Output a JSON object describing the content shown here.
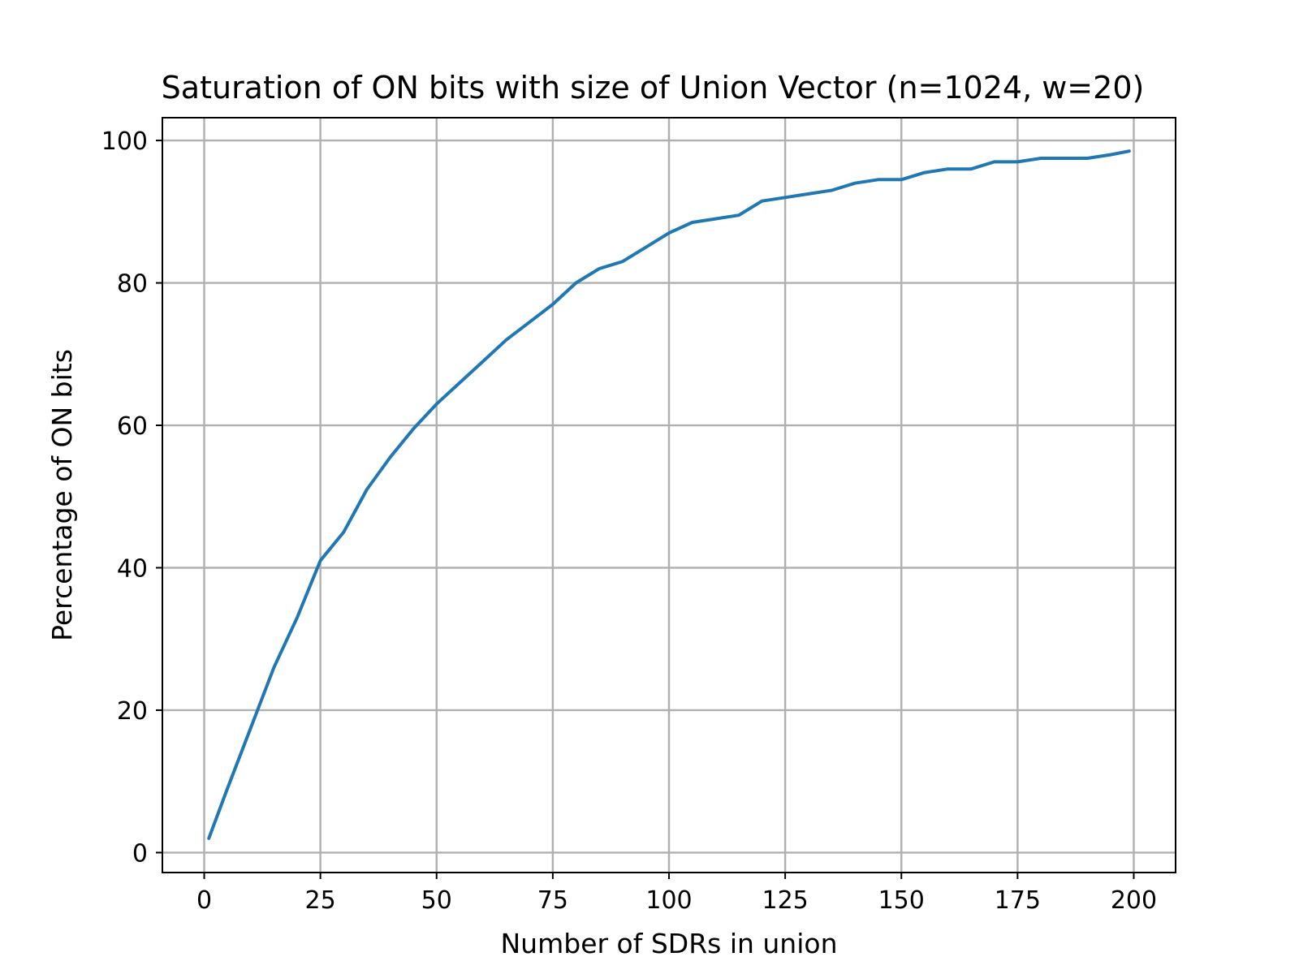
{
  "chart_data": {
    "type": "line",
    "title": "Saturation of ON bits with size of Union Vector (n=1024, w=20)",
    "xlabel": "Number of SDRs in union",
    "ylabel": "Percentage of ON bits",
    "xlim": [
      -9,
      209
    ],
    "ylim": [
      -2.8,
      103.2
    ],
    "xticks": [
      0,
      25,
      50,
      75,
      100,
      125,
      150,
      175,
      200
    ],
    "yticks": [
      0,
      20,
      40,
      60,
      80,
      100
    ],
    "xtick_labels": [
      "0",
      "25",
      "50",
      "75",
      "100",
      "125",
      "150",
      "175",
      "200"
    ],
    "ytick_labels": [
      "0",
      "20",
      "40",
      "60",
      "80",
      "100"
    ],
    "grid": true,
    "line_color": "#1f77b4",
    "series": [
      {
        "x": [
          1,
          5,
          10,
          15,
          20,
          25,
          30,
          35,
          40,
          45,
          50,
          55,
          60,
          65,
          70,
          75,
          80,
          85,
          90,
          95,
          100,
          105,
          110,
          115,
          120,
          125,
          130,
          135,
          140,
          145,
          150,
          155,
          160,
          165,
          170,
          175,
          180,
          185,
          190,
          195,
          199
        ],
        "values": [
          2.0,
          9.0,
          17.5,
          26.0,
          33.0,
          41.0,
          45.0,
          51.0,
          55.5,
          59.5,
          63.0,
          66.0,
          69.0,
          72.0,
          74.5,
          77.0,
          80.0,
          82.0,
          83.0,
          85.0,
          87.0,
          88.5,
          89.0,
          89.5,
          91.5,
          92.0,
          92.5,
          93.0,
          94.0,
          94.5,
          94.5,
          95.5,
          96.0,
          96.0,
          97.0,
          97.0,
          97.5,
          97.5,
          97.5,
          98.0,
          98.5
        ]
      }
    ]
  }
}
